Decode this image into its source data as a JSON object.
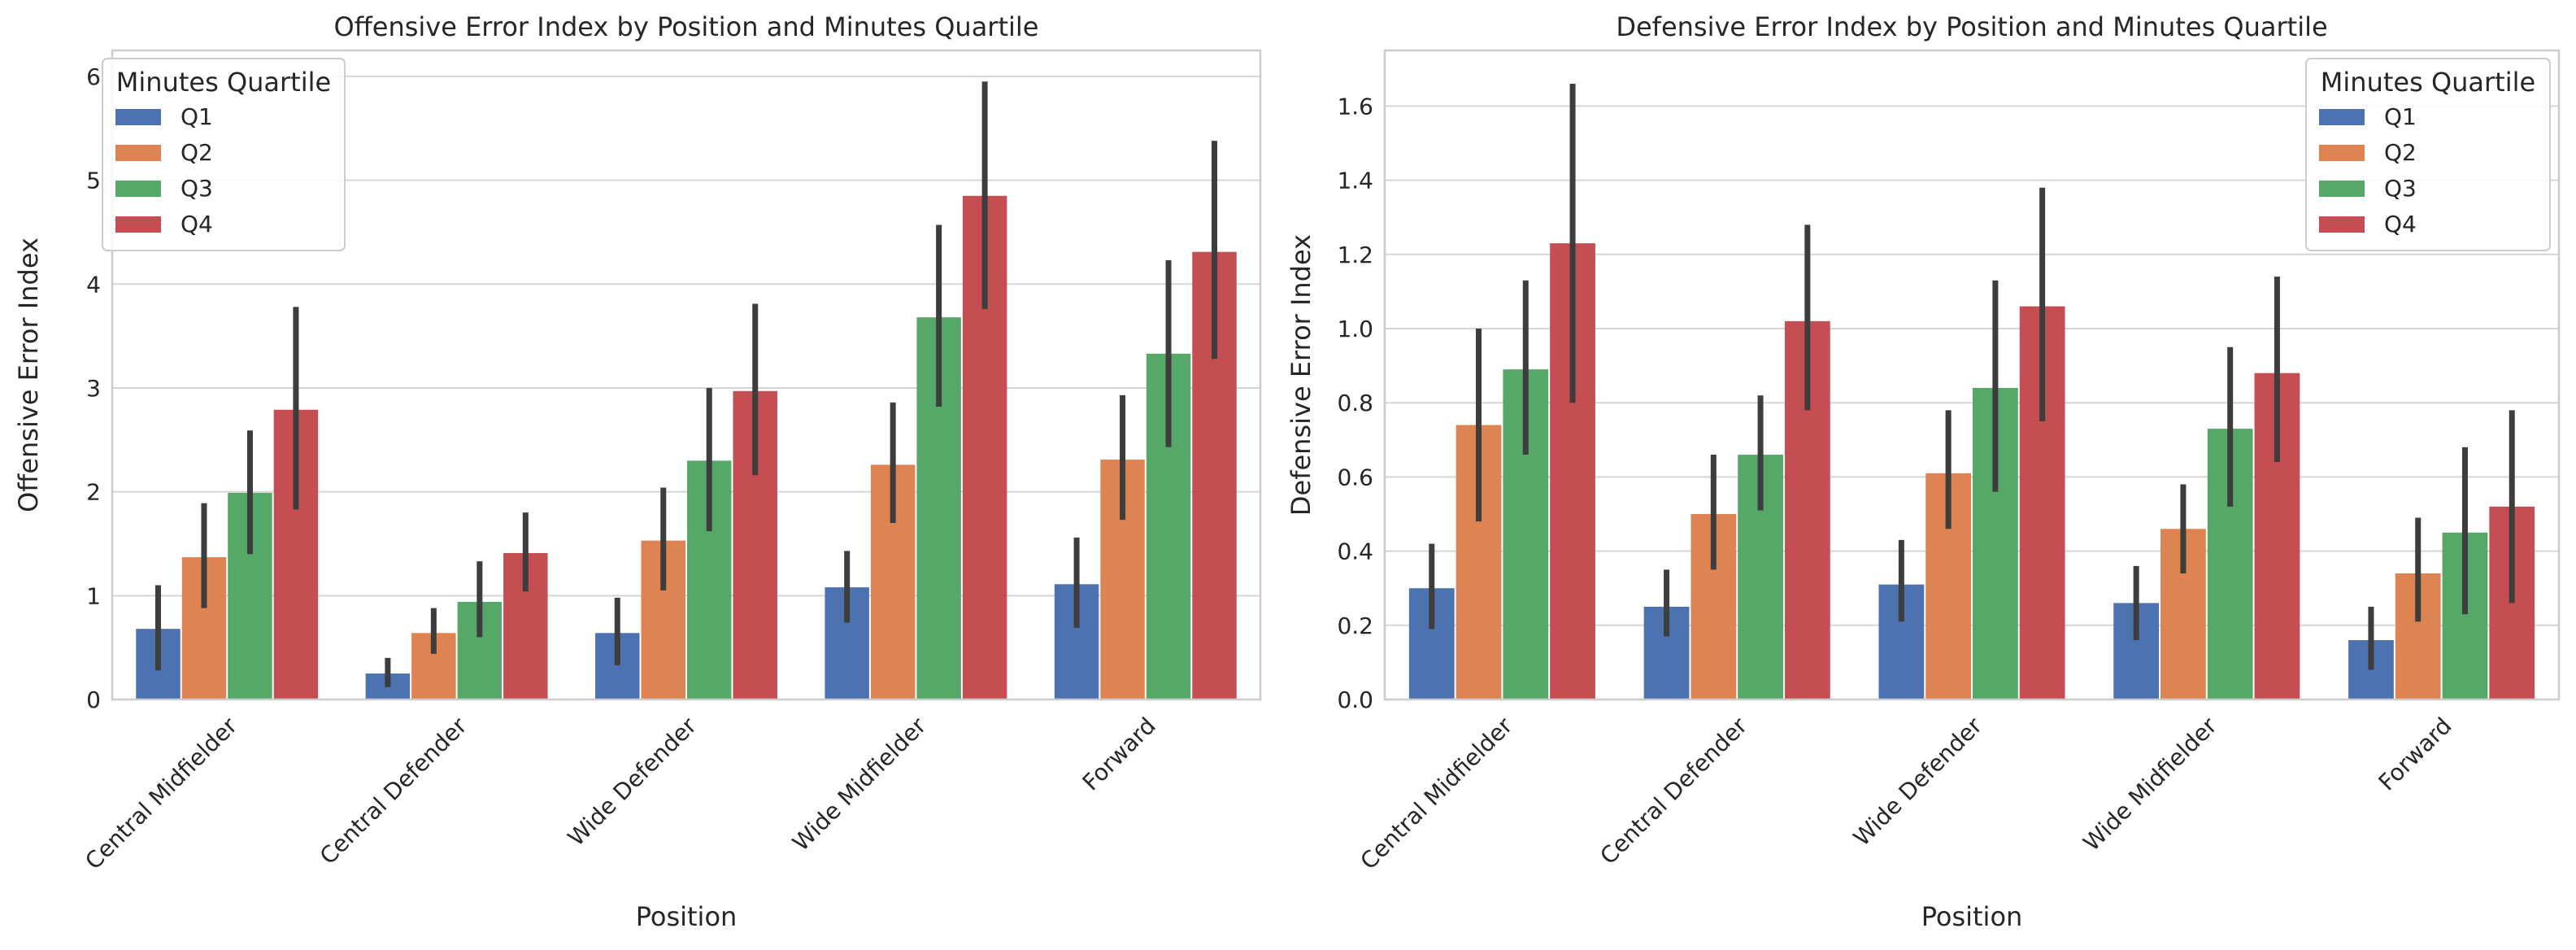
{
  "chart_data": [
    {
      "type": "bar",
      "title": "Offensive Error Index by Position and Minutes Quartile",
      "xlabel": "Position",
      "ylabel": "Offensive Error Index",
      "categories": [
        "Central Midfielder",
        "Central Defender",
        "Wide Defender",
        "Wide Midfielder",
        "Forward"
      ],
      "ylim": [
        0,
        6.25
      ],
      "yticks": [
        "0",
        "1",
        "2",
        "3",
        "4",
        "5",
        "6"
      ],
      "ytick_values": [
        0,
        1,
        2,
        3,
        4,
        5,
        6
      ],
      "grid": true,
      "legend": {
        "title": "Minutes Quartile",
        "placement": "top-left"
      },
      "series": [
        {
          "name": "Q1",
          "color": "#4c72b0",
          "values": [
            0.68,
            0.25,
            0.64,
            1.08,
            1.11
          ],
          "err_low": [
            0.28,
            0.12,
            0.33,
            0.74,
            0.69
          ],
          "err_high": [
            1.1,
            0.4,
            0.98,
            1.43,
            1.56
          ]
        },
        {
          "name": "Q2",
          "color": "#dd8452",
          "values": [
            1.37,
            0.64,
            1.53,
            2.26,
            2.31
          ],
          "err_low": [
            0.88,
            0.44,
            1.05,
            1.7,
            1.73
          ],
          "err_high": [
            1.89,
            0.88,
            2.04,
            2.86,
            2.93
          ]
        },
        {
          "name": "Q3",
          "color": "#55a868",
          "values": [
            1.99,
            0.94,
            2.3,
            3.68,
            3.33
          ],
          "err_low": [
            1.4,
            0.6,
            1.62,
            2.82,
            2.43
          ],
          "err_high": [
            2.59,
            1.33,
            3.0,
            4.57,
            4.23
          ]
        },
        {
          "name": "Q4",
          "color": "#c44e52",
          "values": [
            2.79,
            1.41,
            2.97,
            4.85,
            4.31
          ],
          "err_low": [
            1.83,
            1.04,
            2.16,
            3.76,
            3.28
          ],
          "err_high": [
            3.78,
            1.8,
            3.81,
            5.95,
            5.38
          ]
        }
      ]
    },
    {
      "type": "bar",
      "title": "Defensive Error Index by Position and Minutes Quartile",
      "xlabel": "Position",
      "ylabel": "Defensive Error Index",
      "categories": [
        "Central Midfielder",
        "Central Defender",
        "Wide Defender",
        "Wide Midfielder",
        "Forward"
      ],
      "ylim": [
        0,
        1.75
      ],
      "yticks": [
        "0.0",
        "0.2",
        "0.4",
        "0.6",
        "0.8",
        "1.0",
        "1.2",
        "1.4",
        "1.6"
      ],
      "ytick_values": [
        0,
        0.2,
        0.4,
        0.6,
        0.8,
        1.0,
        1.2,
        1.4,
        1.6
      ],
      "grid": true,
      "legend": {
        "title": "Minutes Quartile",
        "placement": "top-right"
      },
      "series": [
        {
          "name": "Q1",
          "color": "#4c72b0",
          "values": [
            0.3,
            0.25,
            0.31,
            0.26,
            0.16
          ],
          "err_low": [
            0.19,
            0.17,
            0.21,
            0.16,
            0.08
          ],
          "err_high": [
            0.42,
            0.35,
            0.43,
            0.36,
            0.25
          ]
        },
        {
          "name": "Q2",
          "color": "#dd8452",
          "values": [
            0.74,
            0.5,
            0.61,
            0.46,
            0.34
          ],
          "err_low": [
            0.48,
            0.35,
            0.46,
            0.34,
            0.21
          ],
          "err_high": [
            1.0,
            0.66,
            0.78,
            0.58,
            0.49
          ]
        },
        {
          "name": "Q3",
          "color": "#55a868",
          "values": [
            0.89,
            0.66,
            0.84,
            0.73,
            0.45
          ],
          "err_low": [
            0.66,
            0.51,
            0.56,
            0.52,
            0.23
          ],
          "err_high": [
            1.13,
            0.82,
            1.13,
            0.95,
            0.68
          ]
        },
        {
          "name": "Q4",
          "color": "#c44e52",
          "values": [
            1.23,
            1.02,
            1.06,
            0.88,
            0.52
          ],
          "err_low": [
            0.8,
            0.78,
            0.75,
            0.64,
            0.26
          ],
          "err_high": [
            1.66,
            1.28,
            1.38,
            1.14,
            0.78
          ]
        }
      ]
    }
  ]
}
